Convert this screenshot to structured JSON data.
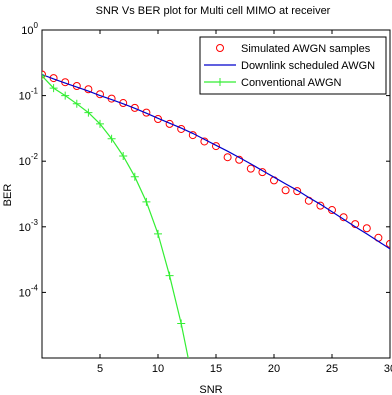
{
  "chart_data": {
    "type": "line",
    "title": "SNR Vs BER plot for Multi cell MIMO at receiver",
    "xlabel": "SNR",
    "ylabel": "BER",
    "xlim": [
      0,
      30
    ],
    "ylim": [
      1e-05,
      1
    ],
    "yscale": "log",
    "grid": false,
    "legend_position": "top-right",
    "x_ticks": [
      5,
      10,
      15,
      20,
      25,
      30
    ],
    "x_tick_labels": [
      "5",
      "10",
      "15",
      "20",
      "25",
      "30"
    ],
    "y_ticks": [
      0.0001,
      0.001,
      0.01,
      0.1,
      1
    ],
    "y_tick_labels": [
      {
        "base": "10",
        "exp": "-4"
      },
      {
        "base": "10",
        "exp": "-3"
      },
      {
        "base": "10",
        "exp": "-2"
      },
      {
        "base": "10",
        "exp": "-1"
      },
      {
        "base": "10",
        "exp": "0"
      }
    ],
    "series": [
      {
        "name": "Simulated AWGN samples",
        "style": "markers",
        "marker": "circle",
        "color": "#ff0000",
        "x": [
          0,
          1,
          2,
          3,
          4,
          5,
          6,
          7,
          8,
          9,
          10,
          11,
          12,
          13,
          14,
          15,
          16,
          17,
          18,
          19,
          20,
          21,
          22,
          23,
          24,
          25,
          26,
          27,
          28,
          29,
          30
        ],
        "y": [
          0.21,
          0.185,
          0.16,
          0.14,
          0.125,
          0.105,
          0.09,
          0.077,
          0.065,
          0.055,
          0.044,
          0.037,
          0.031,
          0.025,
          0.02,
          0.017,
          0.0115,
          0.0105,
          0.0077,
          0.0068,
          0.0051,
          0.0036,
          0.0035,
          0.0025,
          0.0021,
          0.0018,
          0.0014,
          0.0011,
          0.00095,
          0.00068,
          0.00055
        ]
      },
      {
        "name": "Downlink scheduled AWGN",
        "style": "line",
        "color": "#0000cc",
        "x": [
          0,
          1,
          2,
          3,
          4,
          5,
          6,
          7,
          8,
          9,
          10,
          11,
          12,
          13,
          14,
          15,
          16,
          17,
          18,
          19,
          20,
          21,
          22,
          23,
          24,
          25,
          26,
          27,
          28,
          29,
          30
        ],
        "y": [
          0.21,
          0.18,
          0.155,
          0.135,
          0.117,
          0.1,
          0.087,
          0.075,
          0.064,
          0.054,
          0.045,
          0.038,
          0.032,
          0.0265,
          0.0215,
          0.0175,
          0.0142,
          0.0114,
          0.0091,
          0.0072,
          0.0057,
          0.0045,
          0.0036,
          0.0028,
          0.0022,
          0.0017,
          0.0013,
          0.001,
          0.00078,
          0.0006,
          0.00046
        ]
      },
      {
        "name": "Conventional AWGN",
        "style": "line-markers",
        "marker": "plus",
        "color": "#33ee33",
        "x": [
          0,
          1,
          2,
          3,
          4,
          5,
          6,
          7,
          8,
          9,
          10,
          11,
          12,
          13
        ],
        "y": [
          0.2,
          0.13,
          0.1,
          0.075,
          0.055,
          0.037,
          0.022,
          0.012,
          0.0058,
          0.0024,
          0.00078,
          0.00018,
          3.35e-05,
          4.5e-06
        ]
      }
    ]
  }
}
